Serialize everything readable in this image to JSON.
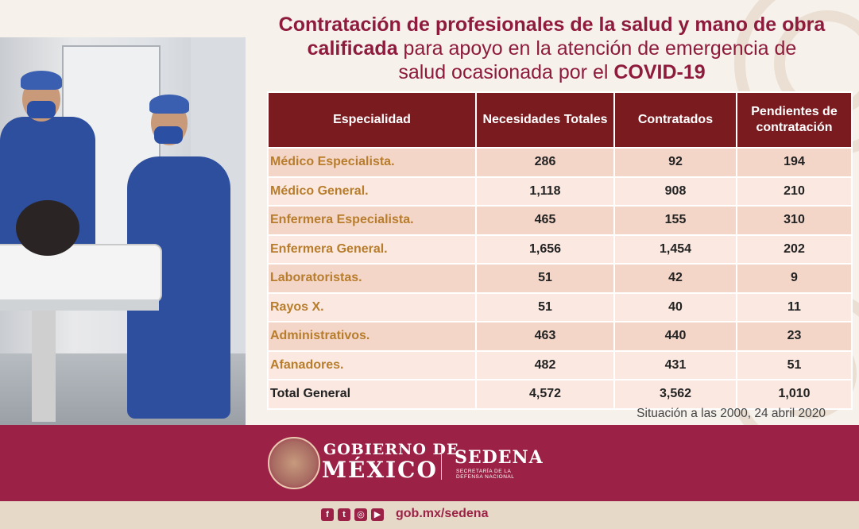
{
  "title": {
    "line1_bold_a": "Contratación de profesionales de la salud  y mano de obra",
    "line2_bold": "calificada",
    "line2_rest": " para apoyo en la atención de emergencia de",
    "line3_rest": "salud ocasionada por el ",
    "line3_bold": "COVID-19"
  },
  "table": {
    "headers": [
      "Especialidad",
      "Necesidades Totales",
      "Contratados",
      "Pendientes de contratación"
    ],
    "rows": [
      [
        "Médico Especialista.",
        "286",
        "92",
        "194"
      ],
      [
        "Médico General.",
        "1,118",
        "908",
        "210"
      ],
      [
        "Enfermera Especialista.",
        "465",
        "155",
        "310"
      ],
      [
        "Enfermera General.",
        "1,656",
        "1,454",
        "202"
      ],
      [
        "Laboratoristas.",
        "51",
        "42",
        "9"
      ],
      [
        "Rayos X.",
        "51",
        "40",
        "11"
      ],
      [
        "Administrativos.",
        "463",
        "440",
        "23"
      ],
      [
        "Afanadores.",
        "482",
        "431",
        "51"
      ],
      [
        "Total General",
        "4,572",
        "3,562",
        "1,010"
      ]
    ]
  },
  "note": "Situación a las 2000, 24 abril 2020",
  "footer": {
    "gob_line1": "GOBIERNO DE",
    "gob_line2": "MÉXICO",
    "sedena": "SEDENA",
    "sedena_sub1": "SECRETARÍA DE LA",
    "sedena_sub2": "DEFENSA NACIONAL",
    "url": "gob.mx/sedena",
    "social": [
      "facebook-icon",
      "twitter-icon",
      "instagram-icon",
      "youtube-icon"
    ]
  },
  "colors": {
    "brand": "#9b2246",
    "header": "#7a1b1f",
    "accent_text": "#b77d2c"
  }
}
